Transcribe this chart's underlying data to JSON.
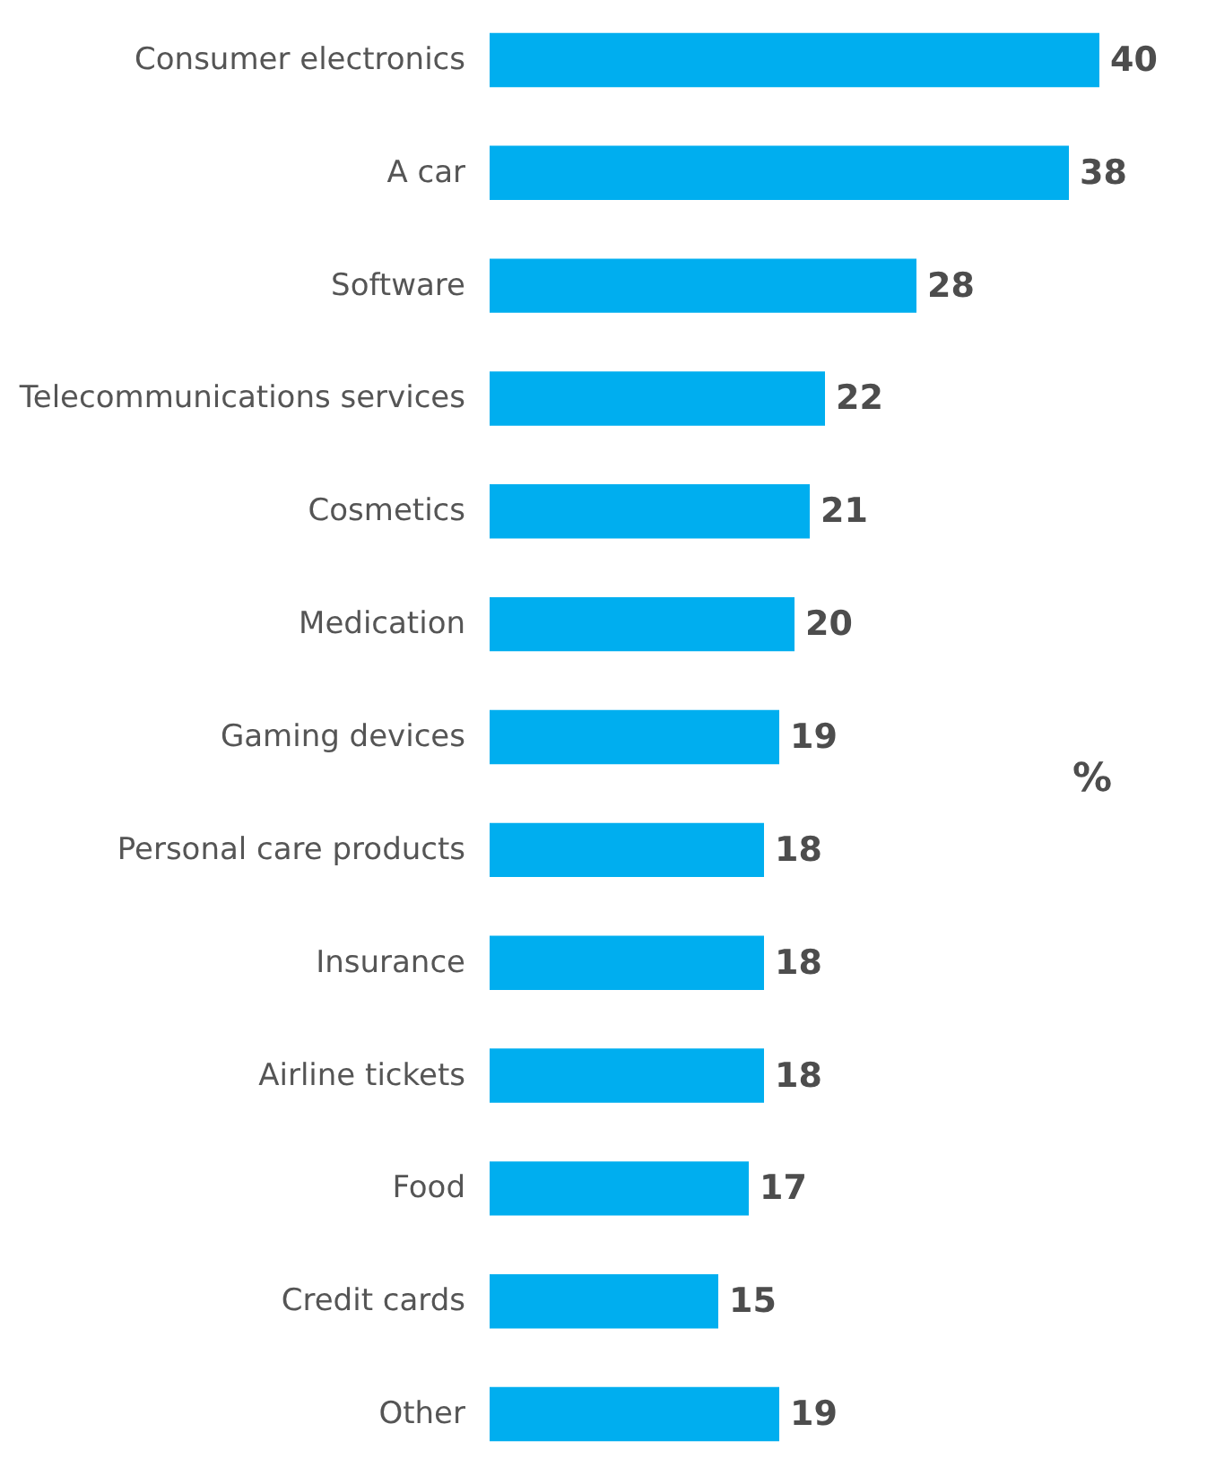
{
  "chart_data": {
    "type": "bar",
    "orientation": "horizontal",
    "categories": [
      "Consumer electronics",
      "A car",
      "Software",
      "Telecommunications services",
      "Cosmetics",
      "Medication",
      "Gaming devices",
      "Personal care products",
      "Insurance",
      "Airline tickets",
      "Food",
      "Credit cards",
      "Other"
    ],
    "values": [
      40,
      38,
      28,
      22,
      21,
      20,
      19,
      18,
      18,
      18,
      17,
      15,
      19
    ],
    "color": "#00aeef",
    "data_labels": true,
    "tick_labels": "y",
    "annotations": [
      "%"
    ]
  }
}
